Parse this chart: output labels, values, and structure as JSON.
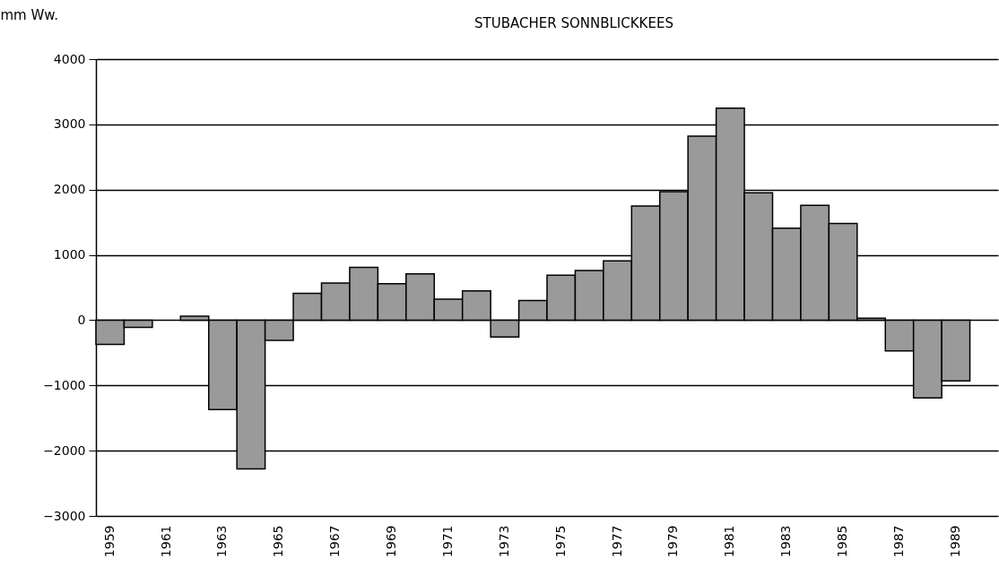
{
  "chart_data": {
    "type": "bar",
    "title": "STUBACHER SONNBLICKKEES",
    "ylabel": "mm Ww.",
    "categories": [
      "1959",
      null,
      "1961",
      null,
      "1963",
      null,
      "1965",
      null,
      "1967",
      null,
      "1969",
      null,
      "1971",
      null,
      "1973",
      null,
      "1975",
      null,
      "1977",
      null,
      "1979",
      null,
      "1981",
      null,
      "1983",
      null,
      "1985",
      null,
      "1987",
      null,
      "1989",
      null
    ],
    "values": [
      -370,
      -110,
      null,
      60,
      -1370,
      -2280,
      -310,
      410,
      570,
      810,
      560,
      710,
      320,
      450,
      -260,
      300,
      690,
      760,
      910,
      1750,
      1970,
      2820,
      3250,
      1950,
      1410,
      1760,
      1480,
      30,
      -470,
      -1190,
      -930,
      null
    ],
    "color": "#9a9a9a",
    "ylim": [
      -3000,
      4000
    ],
    "yticks": [
      -3000,
      -2000,
      -1000,
      0,
      1000,
      2000,
      3000,
      4000
    ],
    "grid": "y"
  }
}
